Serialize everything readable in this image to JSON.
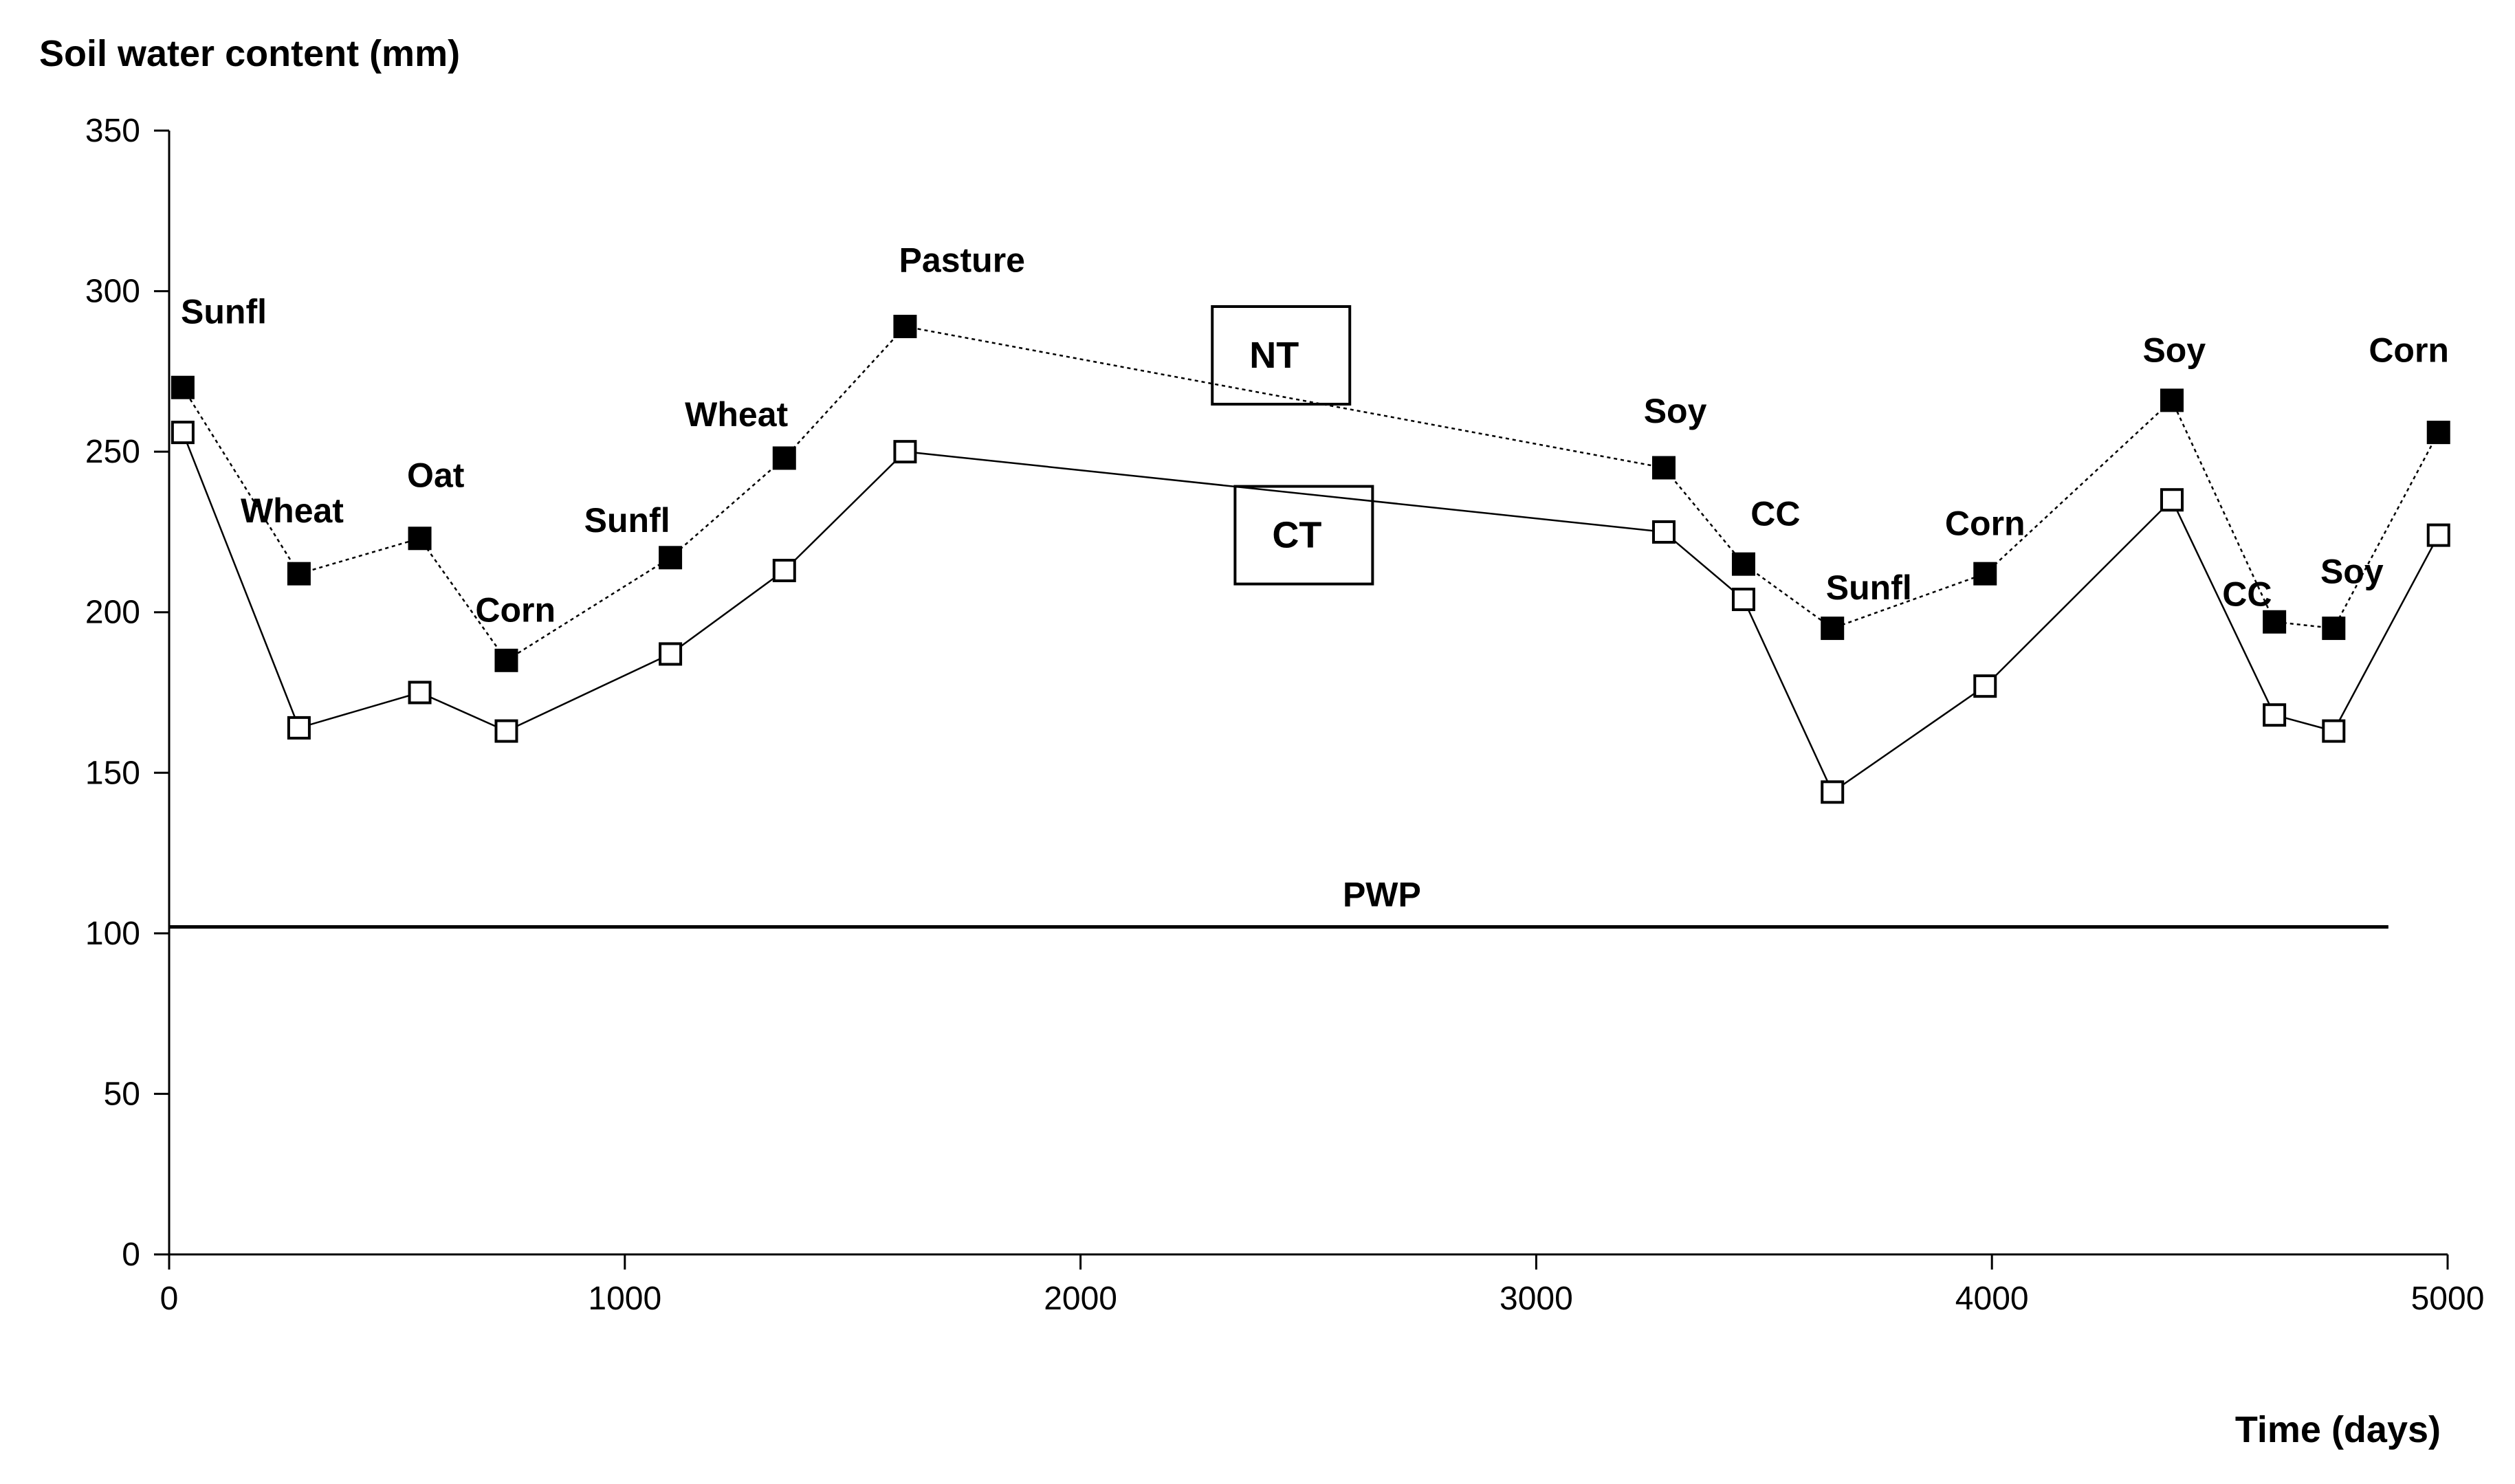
{
  "chart_data": {
    "type": "line",
    "ylabel": "Soil water content (mm)",
    "xlabel": "Time (days)",
    "xlim": [
      0,
      5000
    ],
    "ylim": [
      0,
      350
    ],
    "xticks": [
      0,
      1000,
      2000,
      3000,
      4000,
      5000
    ],
    "yticks": [
      0,
      50,
      100,
      150,
      200,
      250,
      300,
      350
    ],
    "grid": false,
    "series": [
      {
        "name": "NT",
        "marker": "filled-square",
        "line": "dotted",
        "color": "#000000",
        "points": [
          {
            "x": 30,
            "y": 270
          },
          {
            "x": 285,
            "y": 212
          },
          {
            "x": 550,
            "y": 223
          },
          {
            "x": 740,
            "y": 185
          },
          {
            "x": 1100,
            "y": 217
          },
          {
            "x": 1350,
            "y": 248
          },
          {
            "x": 1615,
            "y": 289
          },
          {
            "x": 3280,
            "y": 245
          },
          {
            "x": 3455,
            "y": 215
          },
          {
            "x": 3650,
            "y": 195
          },
          {
            "x": 3985,
            "y": 212
          },
          {
            "x": 4395,
            "y": 266
          },
          {
            "x": 4620,
            "y": 197
          },
          {
            "x": 4750,
            "y": 195
          },
          {
            "x": 4980,
            "y": 256
          }
        ]
      },
      {
        "name": "CT",
        "marker": "open-square",
        "line": "solid",
        "color": "#000000",
        "points": [
          {
            "x": 30,
            "y": 256
          },
          {
            "x": 285,
            "y": 164
          },
          {
            "x": 550,
            "y": 175
          },
          {
            "x": 740,
            "y": 163
          },
          {
            "x": 1100,
            "y": 187
          },
          {
            "x": 1350,
            "y": 213
          },
          {
            "x": 1615,
            "y": 250
          },
          {
            "x": 3280,
            "y": 225
          },
          {
            "x": 3455,
            "y": 204
          },
          {
            "x": 3650,
            "y": 144
          },
          {
            "x": 3985,
            "y": 177
          },
          {
            "x": 4395,
            "y": 235
          },
          {
            "x": 4620,
            "y": 168
          },
          {
            "x": 4750,
            "y": 163
          },
          {
            "x": 4980,
            "y": 224
          }
        ]
      }
    ],
    "reference_lines": [
      {
        "label": "PWP",
        "y": 102,
        "x_from": 0,
        "x_to": 4870
      }
    ],
    "annotations": [
      {
        "text": "Sunfl",
        "x": 120,
        "y": 290
      },
      {
        "text": "Wheat",
        "x": 270,
        "y": 228
      },
      {
        "text": "Oat",
        "x": 585,
        "y": 239
      },
      {
        "text": "Corn",
        "x": 760,
        "y": 197
      },
      {
        "text": "Sunfl",
        "x": 1005,
        "y": 225
      },
      {
        "text": "Wheat",
        "x": 1245,
        "y": 258
      },
      {
        "text": "Pasture",
        "x": 1740,
        "y": 306
      },
      {
        "text": "Soy",
        "x": 3305,
        "y": 259
      },
      {
        "text": "CC",
        "x": 3525,
        "y": 227
      },
      {
        "text": "Sunfl",
        "x": 3730,
        "y": 204
      },
      {
        "text": "Corn",
        "x": 3985,
        "y": 224
      },
      {
        "text": "Soy",
        "x": 4400,
        "y": 278
      },
      {
        "text": "CC",
        "x": 4560,
        "y": 202
      },
      {
        "text": "Soy",
        "x": 4790,
        "y": 209
      },
      {
        "text": "Corn",
        "x": 4915,
        "y": 278
      }
    ],
    "series_boxes": [
      {
        "label": "NT",
        "x": 2440,
        "y": 280
      },
      {
        "label": "CT",
        "x": 2490,
        "y": 224
      }
    ]
  }
}
